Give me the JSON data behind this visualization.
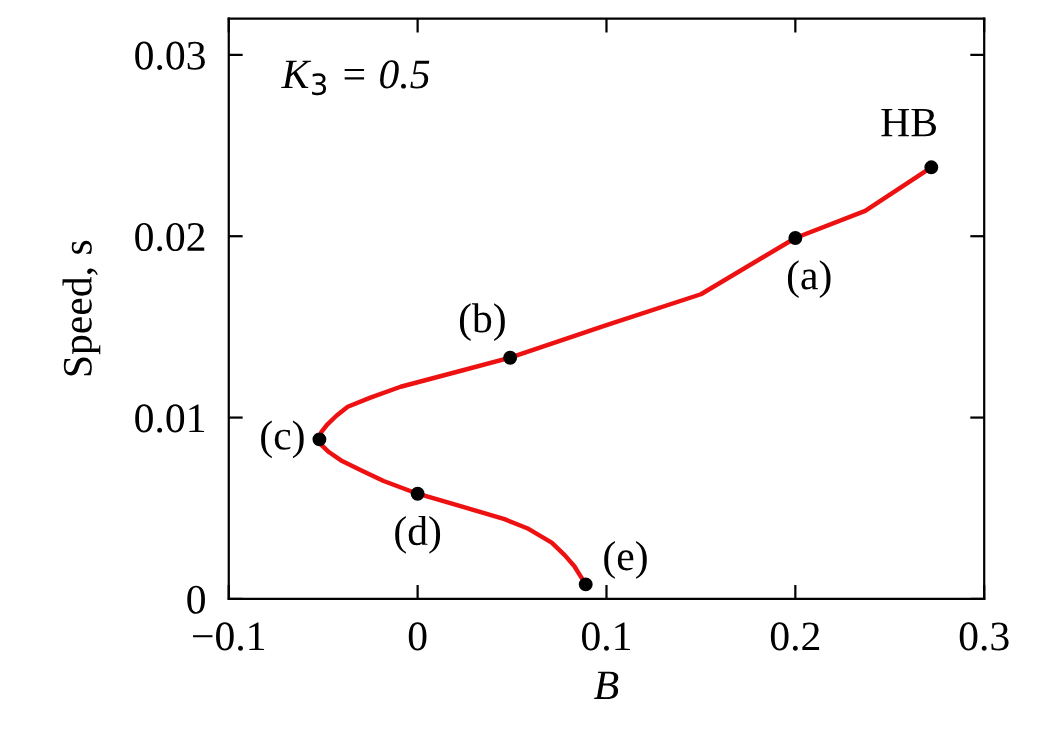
{
  "chart_data": {
    "type": "line",
    "xlabel": "B",
    "ylabel": "Speed, s",
    "xlim": [
      -0.1,
      0.3
    ],
    "ylim": [
      0,
      0.032
    ],
    "xticks": [
      -0.1,
      0,
      0.1,
      0.2,
      0.3
    ],
    "yticks": [
      0,
      0.01,
      0.02,
      0.03
    ],
    "grid": false,
    "legend": false,
    "series": [
      {
        "color": "#ee1111",
        "marker": "none",
        "x": [
          0.089,
          0.086,
          0.083,
          0.078,
          0.071,
          0.058,
          0.046,
          0.02,
          0.0,
          -0.018,
          -0.03,
          -0.04,
          -0.047,
          -0.051,
          -0.052,
          -0.051,
          -0.048,
          -0.043,
          -0.037,
          -0.025,
          -0.009,
          0.02,
          0.049,
          0.1,
          0.15,
          0.2,
          0.237,
          0.272
        ],
        "values": [
          0.0008,
          0.0013,
          0.0018,
          0.0024,
          0.0031,
          0.0039,
          0.0044,
          0.0052,
          0.0058,
          0.0065,
          0.0071,
          0.0076,
          0.0081,
          0.0085,
          0.0088,
          0.0092,
          0.0096,
          0.0101,
          0.0106,
          0.0111,
          0.0117,
          0.0125,
          0.0133,
          0.0151,
          0.0168,
          0.0199,
          0.0214,
          0.0238
        ]
      },
      {
        "type": "scatter",
        "color": "#000000",
        "marker": "circle",
        "x": [
          0.272,
          0.2,
          0.049,
          -0.052,
          0.0,
          0.089
        ],
        "values": [
          0.0238,
          0.0199,
          0.0133,
          0.0088,
          0.0058,
          0.0008
        ]
      }
    ],
    "annotations": [
      "K$_{3}$ = 0.5",
      {
        "text": "HB",
        "x": 0.272,
        "y": 0.0238
      },
      {
        "text": "(a)",
        "x": 0.2,
        "y": 0.0199
      },
      {
        "text": "(b)",
        "x": 0.049,
        "y": 0.0133
      },
      {
        "text": "(c)",
        "x": -0.052,
        "y": 0.0088
      },
      {
        "text": "(d)",
        "x": 0.0,
        "y": 0.0058
      },
      {
        "text": "(e)",
        "x": 0.089,
        "y": 0.0008
      }
    ]
  }
}
